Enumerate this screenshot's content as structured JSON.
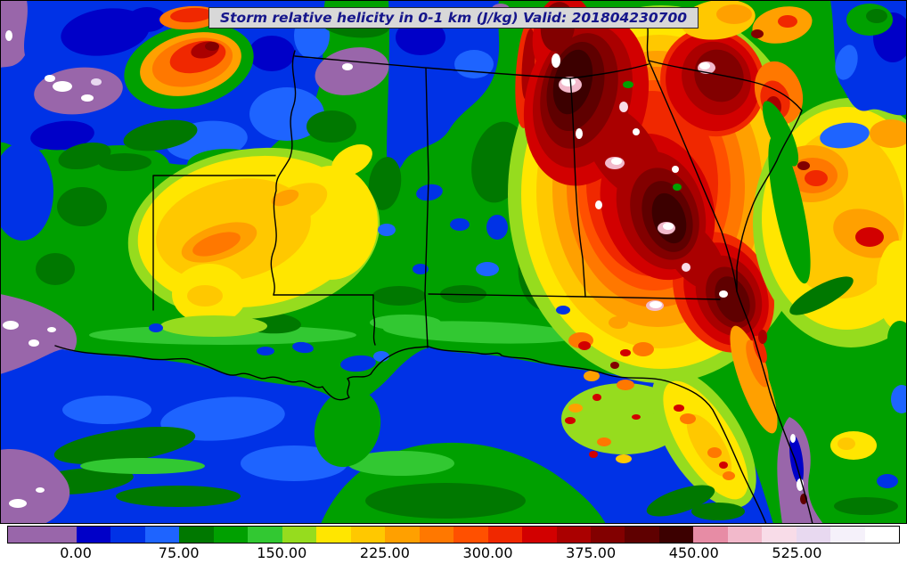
{
  "title": {
    "text": "Storm relative helicity in 0-1 km (J/kg) Valid: 201804230700"
  },
  "colorbar": {
    "min": -50,
    "max": 600,
    "ticks": [
      "0.00",
      "75.00",
      "150.00",
      "225.00",
      "300.00",
      "375.00",
      "450.00",
      "525.00"
    ],
    "tick_values": [
      0,
      75,
      150,
      225,
      300,
      375,
      450,
      525
    ],
    "segments": [
      "#9966AA",
      "#9966AA",
      "#0000C8",
      "#0032E6",
      "#1E64FF",
      "#007800",
      "#00A000",
      "#32C832",
      "#96DC1E",
      "#FFE600",
      "#FFC800",
      "#FFA000",
      "#FF7800",
      "#FF5000",
      "#F02800",
      "#D20000",
      "#AA0000",
      "#820000",
      "#5F0000",
      "#3C0000",
      "#E78CA5",
      "#F2B9CB",
      "#F8DCE8",
      "#E8D9F0",
      "#F5F1FA",
      "#FFFFFF"
    ]
  },
  "chart_data": {
    "type": "heatmap",
    "title": "Storm relative helicity in 0-1 km (J/kg)",
    "valid": "201804230700",
    "units": "J/kg",
    "colorbar_tick_values": [
      0,
      75,
      150,
      225,
      300,
      375,
      450,
      525
    ],
    "value_range_estimate": [
      -50,
      600
    ],
    "legend_position": "bottom"
  },
  "colors": {
    "title_text": "#16168B",
    "title_bg": "#D8D8D8",
    "frame": "#000000",
    "page_bg": "#FFFFFF",
    "land_base": "#00A000"
  }
}
